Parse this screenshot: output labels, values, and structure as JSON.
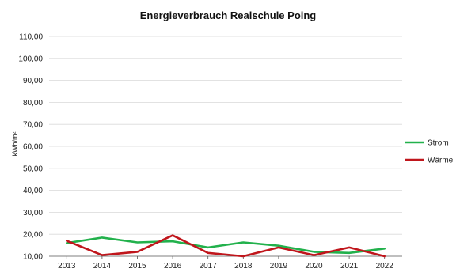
{
  "chart_data": {
    "type": "line",
    "title": "Energieverbrauch Realschule Poing",
    "xlabel": "",
    "ylabel": "kWh/m²",
    "categories": [
      "2013",
      "2014",
      "2015",
      "2016",
      "2017",
      "2018",
      "2019",
      "2020",
      "2021",
      "2022"
    ],
    "ylim": [
      10,
      110
    ],
    "yticks": [
      "10,00",
      "20,00",
      "30,00",
      "40,00",
      "50,00",
      "60,00",
      "70,00",
      "80,00",
      "90,00",
      "100,00",
      "110,00"
    ],
    "grid": true,
    "legend_position": "right",
    "series": [
      {
        "name": "Strom",
        "color": "#22b14c",
        "values": [
          16.0,
          18.5,
          16.3,
          16.8,
          14.0,
          16.3,
          14.8,
          12.0,
          11.5,
          13.5
        ]
      },
      {
        "name": "Wärme",
        "color": "#c0161c",
        "values": [
          17.0,
          10.5,
          12.0,
          19.5,
          11.5,
          10.0,
          14.0,
          10.5,
          14.0,
          10.0
        ]
      }
    ]
  }
}
